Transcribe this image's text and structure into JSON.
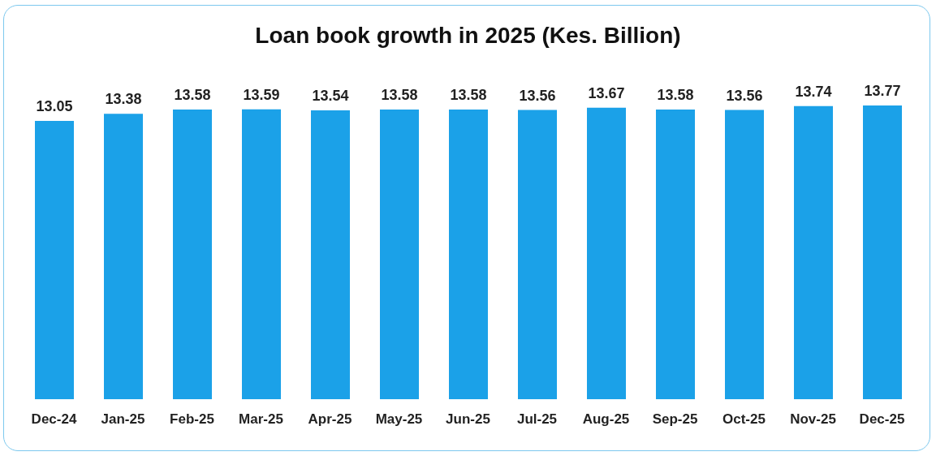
{
  "chart_data": {
    "type": "bar",
    "title": "Loan book growth in 2025 (Kes. Billion)",
    "categories": [
      "Dec-24",
      "Jan-25",
      "Feb-25",
      "Mar-25",
      "Apr-25",
      "May-25",
      "Jun-25",
      "Jul-25",
      "Aug-25",
      "Sep-25",
      "Oct-25",
      "Nov-25",
      "Dec-25"
    ],
    "values": [
      13.05,
      13.38,
      13.58,
      13.59,
      13.54,
      13.58,
      13.58,
      13.56,
      13.67,
      13.58,
      13.56,
      13.74,
      13.77
    ],
    "color": "#1ba1e8",
    "tick_labels": "x",
    "data_labels": true
  }
}
